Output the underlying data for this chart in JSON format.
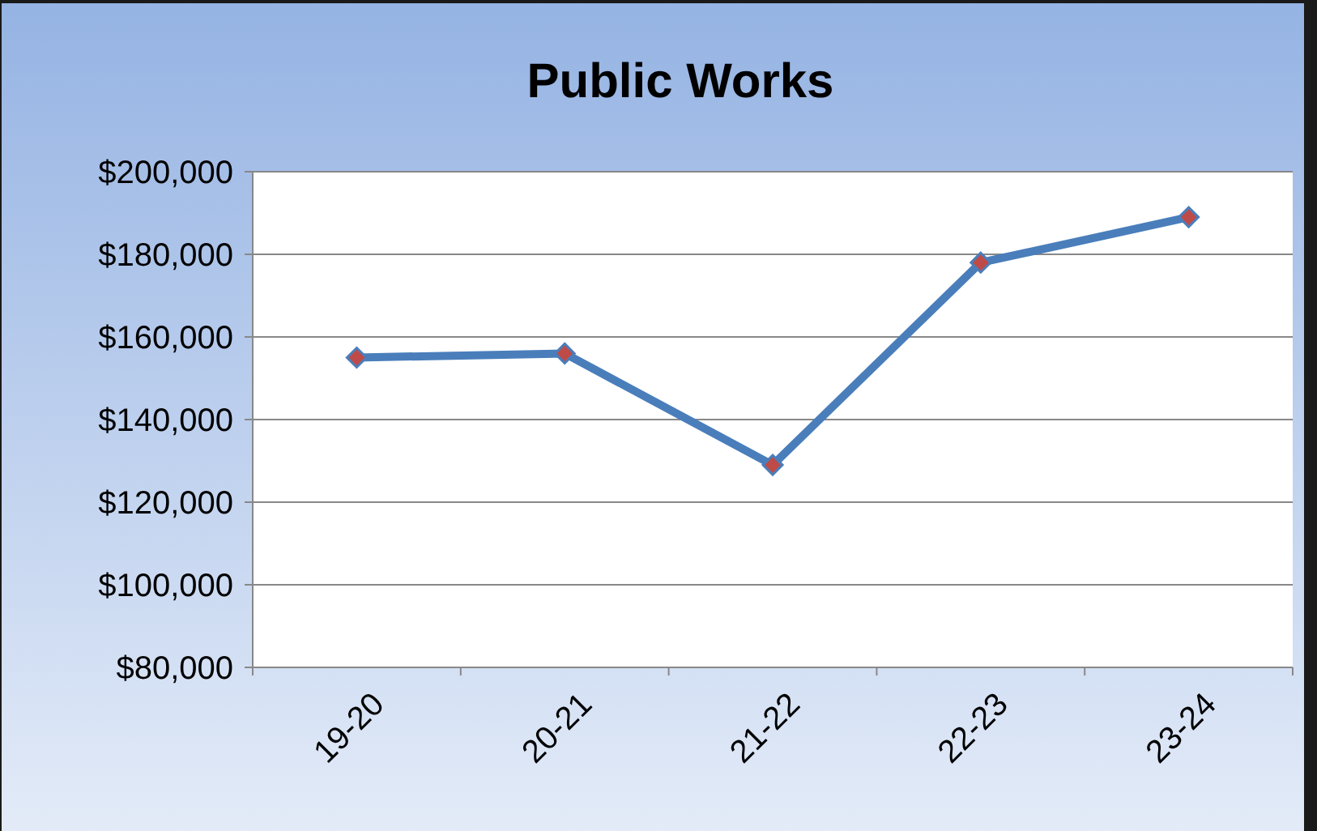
{
  "chart_data": {
    "type": "line",
    "title": "Public Works",
    "categories": [
      "19-20",
      "20-21",
      "21-22",
      "22-23",
      "23-24"
    ],
    "series": [
      {
        "color": "#4a7ebb",
        "values": [
          155000,
          156000,
          129000,
          178000,
          189000
        ]
      }
    ],
    "ylim": [
      80000,
      200000
    ],
    "yticks": [
      {
        "value": 80000,
        "label": "$80,000"
      },
      {
        "value": 100000,
        "label": "$100,000"
      },
      {
        "value": 120000,
        "label": "$120,000"
      },
      {
        "value": 140000,
        "label": "$140,000"
      },
      {
        "value": 160000,
        "label": "$160,000"
      },
      {
        "value": 180000,
        "label": "$180,000"
      },
      {
        "value": 200000,
        "label": "$200,000"
      }
    ],
    "grid": "y",
    "marker": "diamond",
    "line_style": "solid"
  }
}
